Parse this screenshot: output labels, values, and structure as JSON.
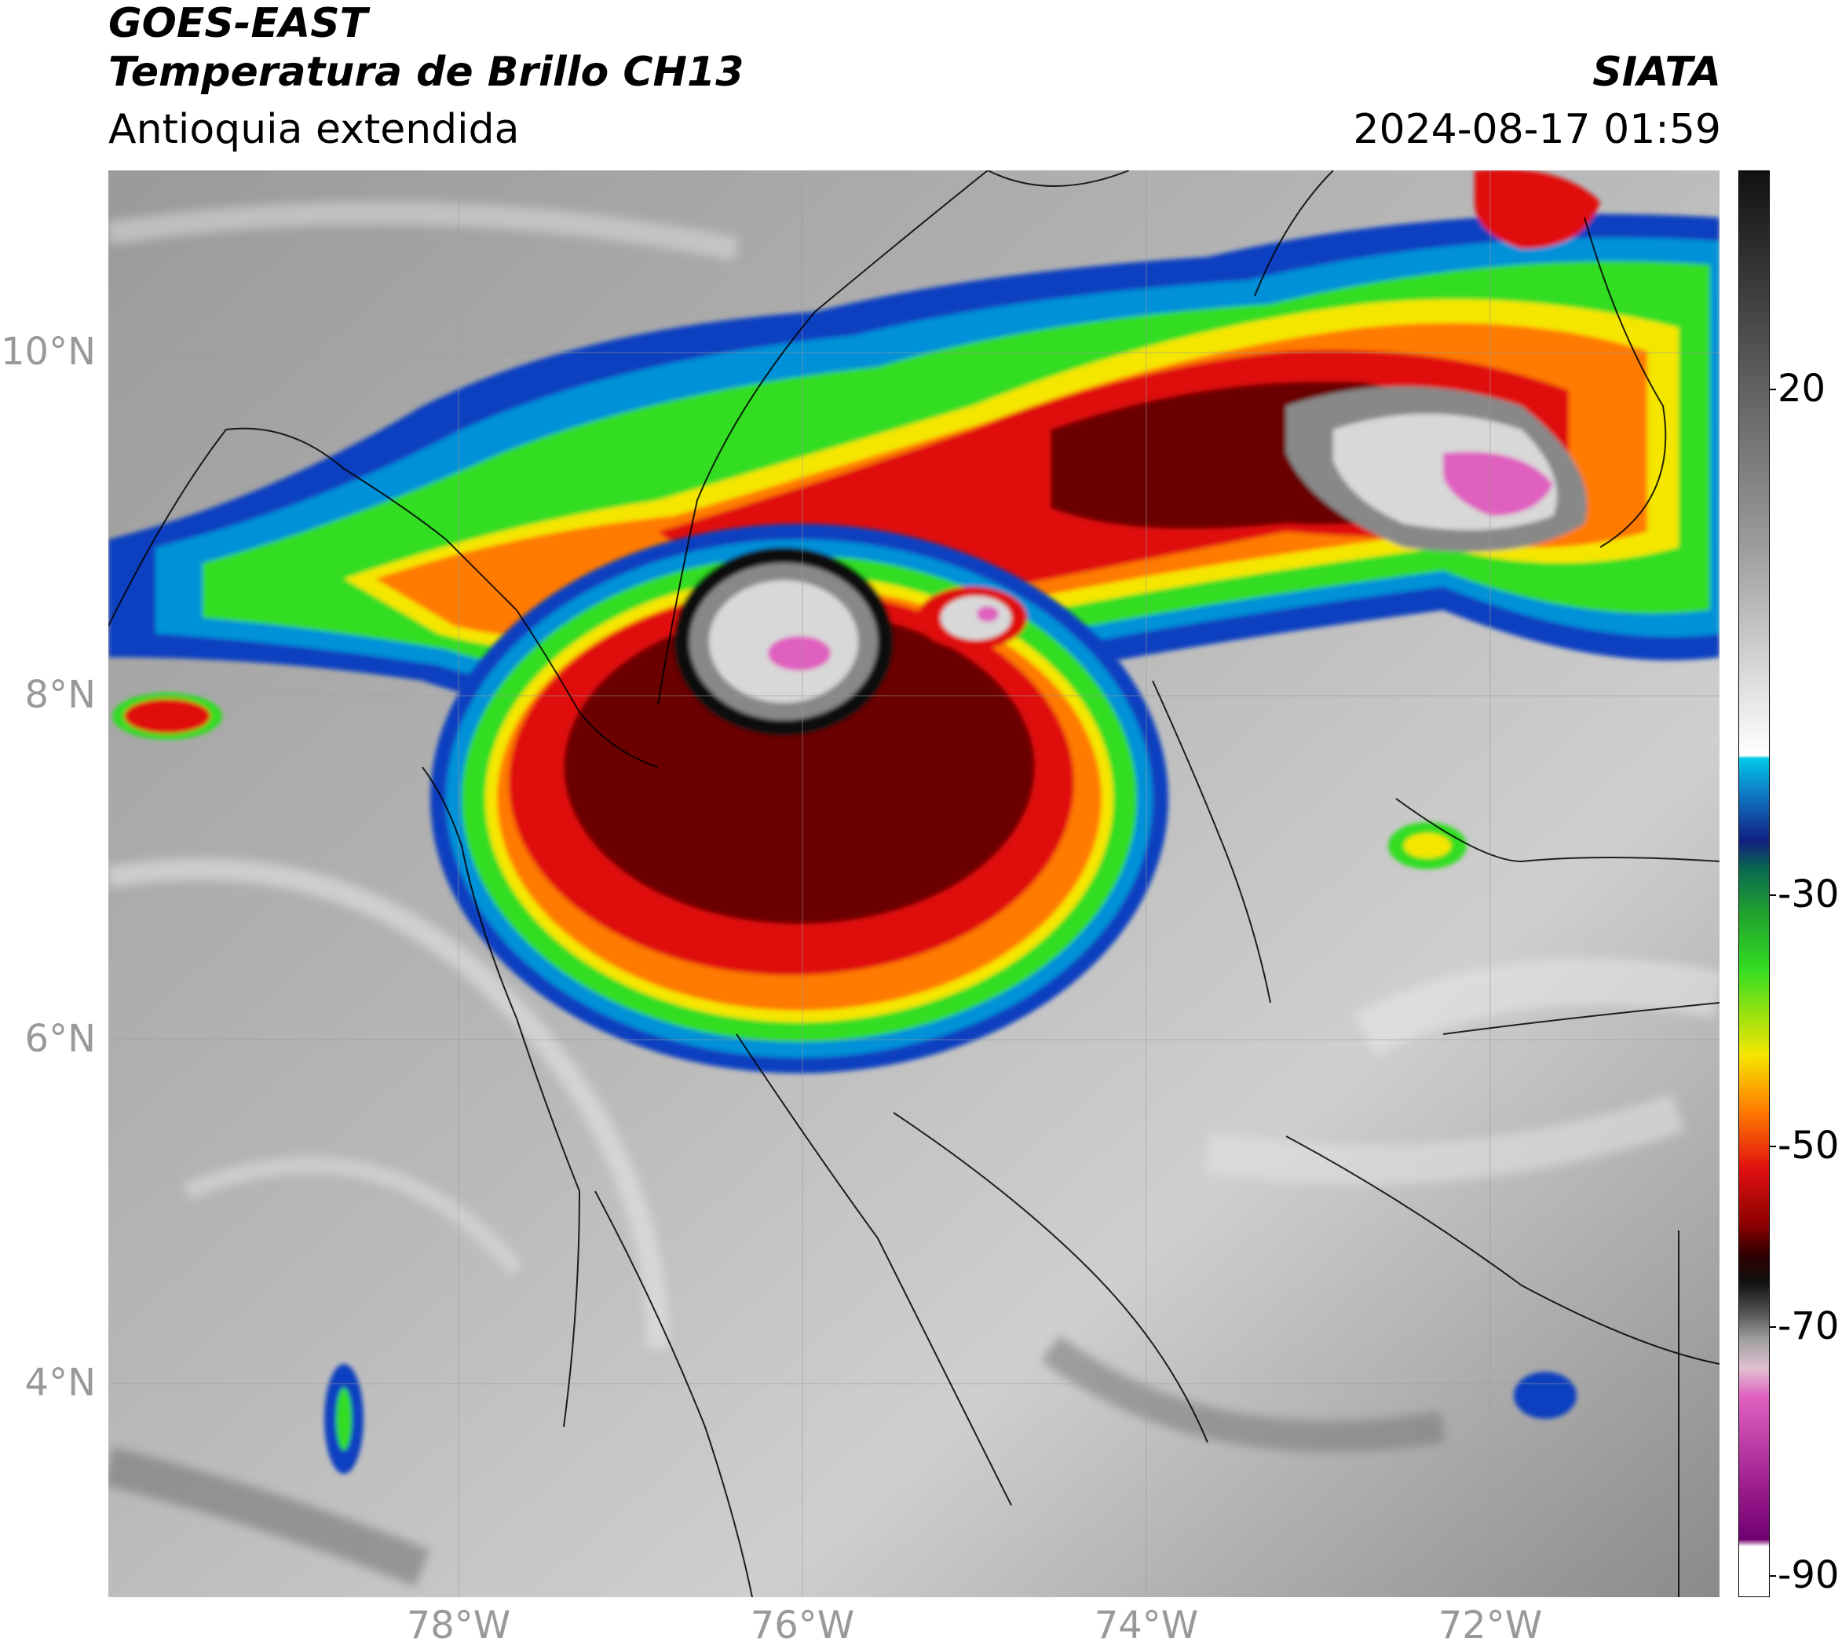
{
  "header": {
    "satellite": "GOES-EAST",
    "product": "Temperatura de Brillo CH13",
    "region": "Antioquia extendida",
    "organization": "SIATA",
    "datetime": "2024-08-17 01:59"
  },
  "map": {
    "lon_range": [
      -80.0,
      -70.8
    ],
    "lat_range": [
      2.8,
      11.1
    ],
    "lat_ticks": [
      "10°N",
      "8°N",
      "6°N",
      "4°N"
    ],
    "lon_ticks": [
      "78°W",
      "76°W",
      "74°W",
      "72°W"
    ]
  },
  "colorbar": {
    "range": [
      -90,
      45
    ],
    "tick_labels": [
      "20",
      "-30",
      "-50",
      "-70",
      "-90"
    ],
    "colors": {
      "magenta": "#e060c0",
      "white_cold": "#f0f0f0",
      "black_cold": "#111111",
      "dark_red": "#6a0000",
      "red": "#e01010",
      "orange": "#ff7a00",
      "yellow": "#f5e600",
      "green": "#33dd22",
      "blue": "#1040c0",
      "cyan": "#00c8e8"
    }
  }
}
